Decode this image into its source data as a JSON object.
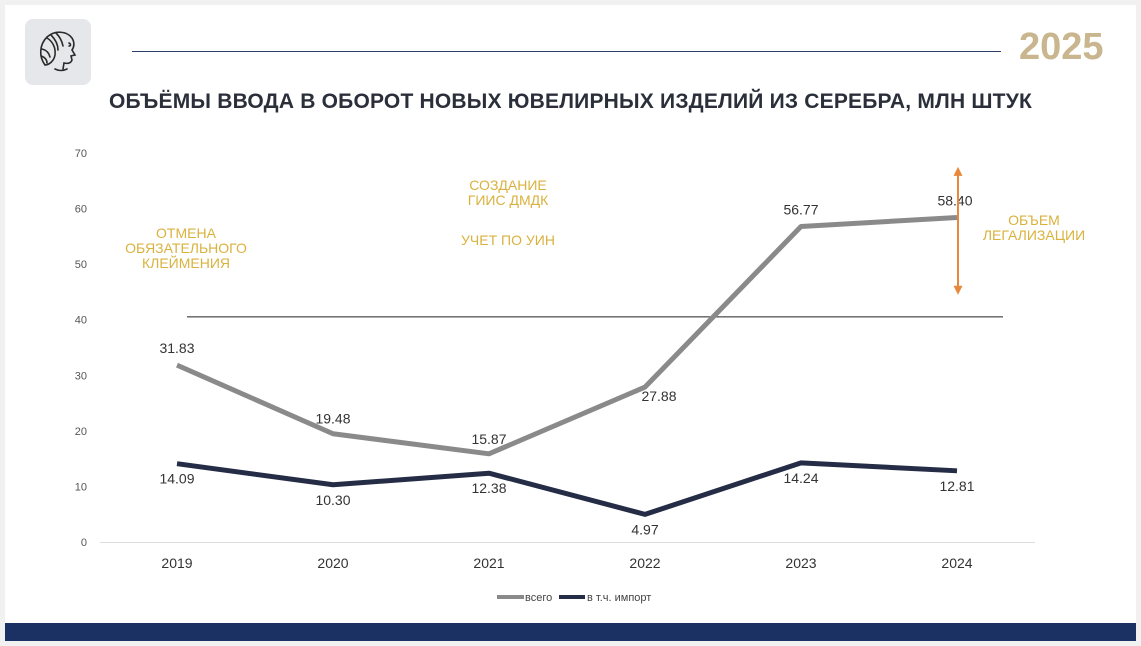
{
  "header": {
    "year": "2025",
    "title": "ОБЪЁМЫ ВВОДА В ОБОРОТ НОВЫХ ЮВЕЛИРНЫХ ИЗДЕЛИЙ ИЗ СЕРЕБРА, МЛН ШТУК"
  },
  "colors": {
    "accent_gold": "#c9b68f",
    "annotation_text": "#d9b23e",
    "series_total": "#8a8a8a",
    "series_import": "#252c45",
    "arrow": "#e8883a",
    "footer": "#1c3163"
  },
  "chart_data": {
    "type": "line",
    "x": [
      "2019",
      "2020",
      "2021",
      "2022",
      "2023",
      "2024"
    ],
    "ylim": [
      0,
      70
    ],
    "yticks": [
      "0",
      "10",
      "20",
      "30",
      "40",
      "50",
      "60",
      "70"
    ],
    "grid": false,
    "legend_position": "bottom",
    "series": [
      {
        "name": "всего",
        "values": [
          31.83,
          19.48,
          15.87,
          27.88,
          56.77,
          58.4
        ],
        "labels": [
          "31.83",
          "19.48",
          "15.87",
          "27.88",
          "56.77",
          "58.40"
        ]
      },
      {
        "name": "в т.ч. импорт",
        "values": [
          14.09,
          10.3,
          12.38,
          4.97,
          14.24,
          12.81
        ],
        "labels": [
          "14.09",
          "10.30",
          "12.38",
          "4.97",
          "14.24",
          "12.81"
        ]
      }
    ],
    "reference_line": {
      "y": 40.5
    },
    "legalization_arrow": {
      "from": 44.5,
      "to": 67.5
    },
    "annotations": [
      {
        "lines": [
          "ОТМЕНА",
          "ОБЯЗАТЕЛЬНОГО",
          "КЛЕЙМЕНИЯ"
        ]
      },
      {
        "lines": [
          "СОЗДАНИЕ",
          "ГИИС ДМДК"
        ]
      },
      {
        "lines": [
          "УЧЕТ ПО УИН"
        ]
      },
      {
        "lines": [
          "ОБЪЕМ",
          "ЛЕГАЛИЗАЦИИ"
        ]
      }
    ]
  }
}
